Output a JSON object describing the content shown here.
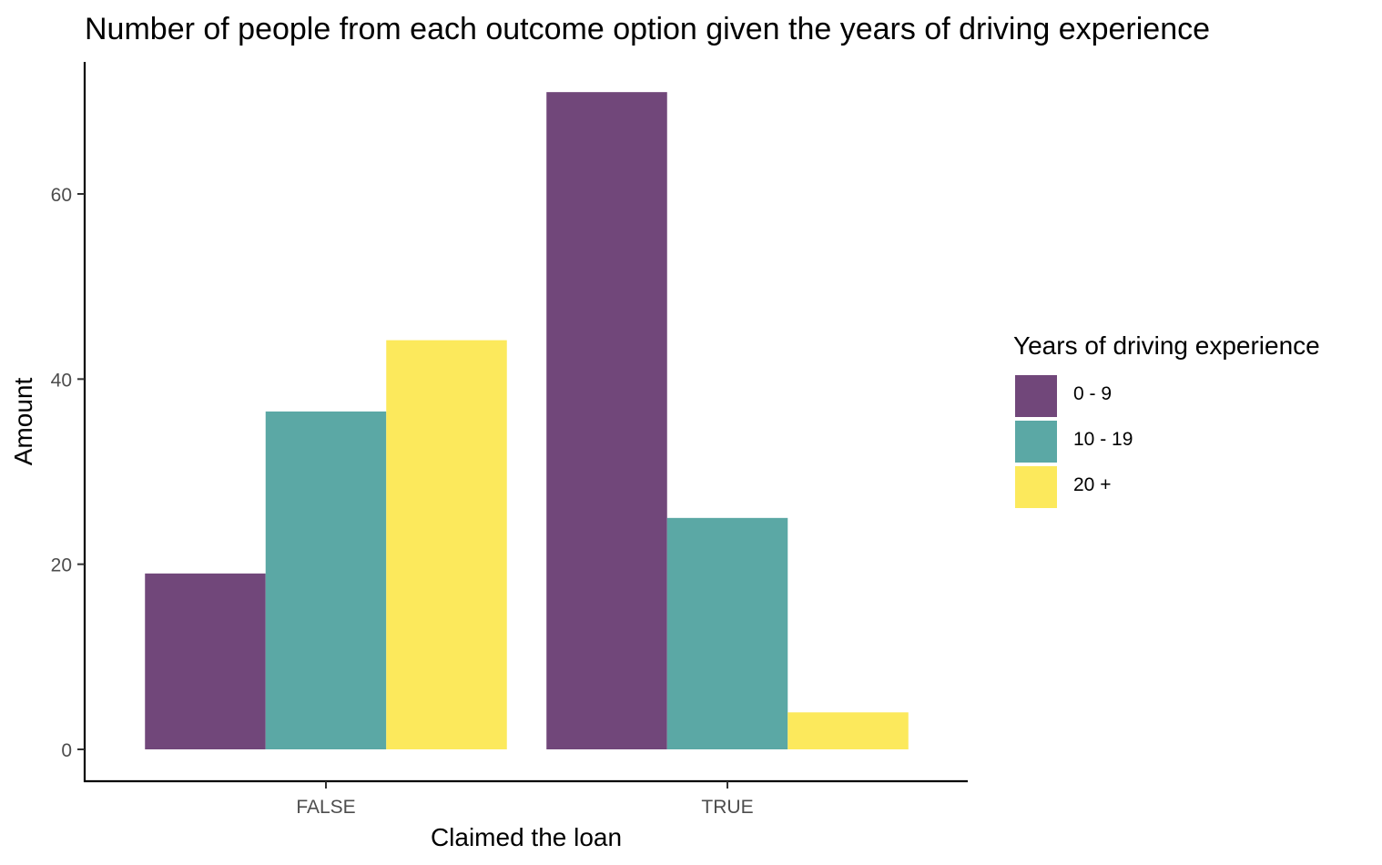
{
  "chart_data": {
    "type": "bar",
    "title": "Number of people from each outcome option given the years of driving experience",
    "xlabel": "Claimed the loan",
    "ylabel": "Amount",
    "categories": [
      "FALSE",
      "TRUE"
    ],
    "series": [
      {
        "name": "0 - 9",
        "color": "#71477a",
        "values": [
          19,
          71
        ]
      },
      {
        "name": "10 - 19",
        "color": "#5ba8a5",
        "values": [
          36.5,
          25
        ]
      },
      {
        "name": "20 +",
        "color": "#fce95c",
        "values": [
          44.2,
          4
        ]
      }
    ],
    "ylim": [
      0,
      71
    ],
    "yticks": [
      0,
      20,
      40,
      60
    ],
    "legend_title": "Years of driving experience",
    "legend_position": "right",
    "grid": false
  }
}
